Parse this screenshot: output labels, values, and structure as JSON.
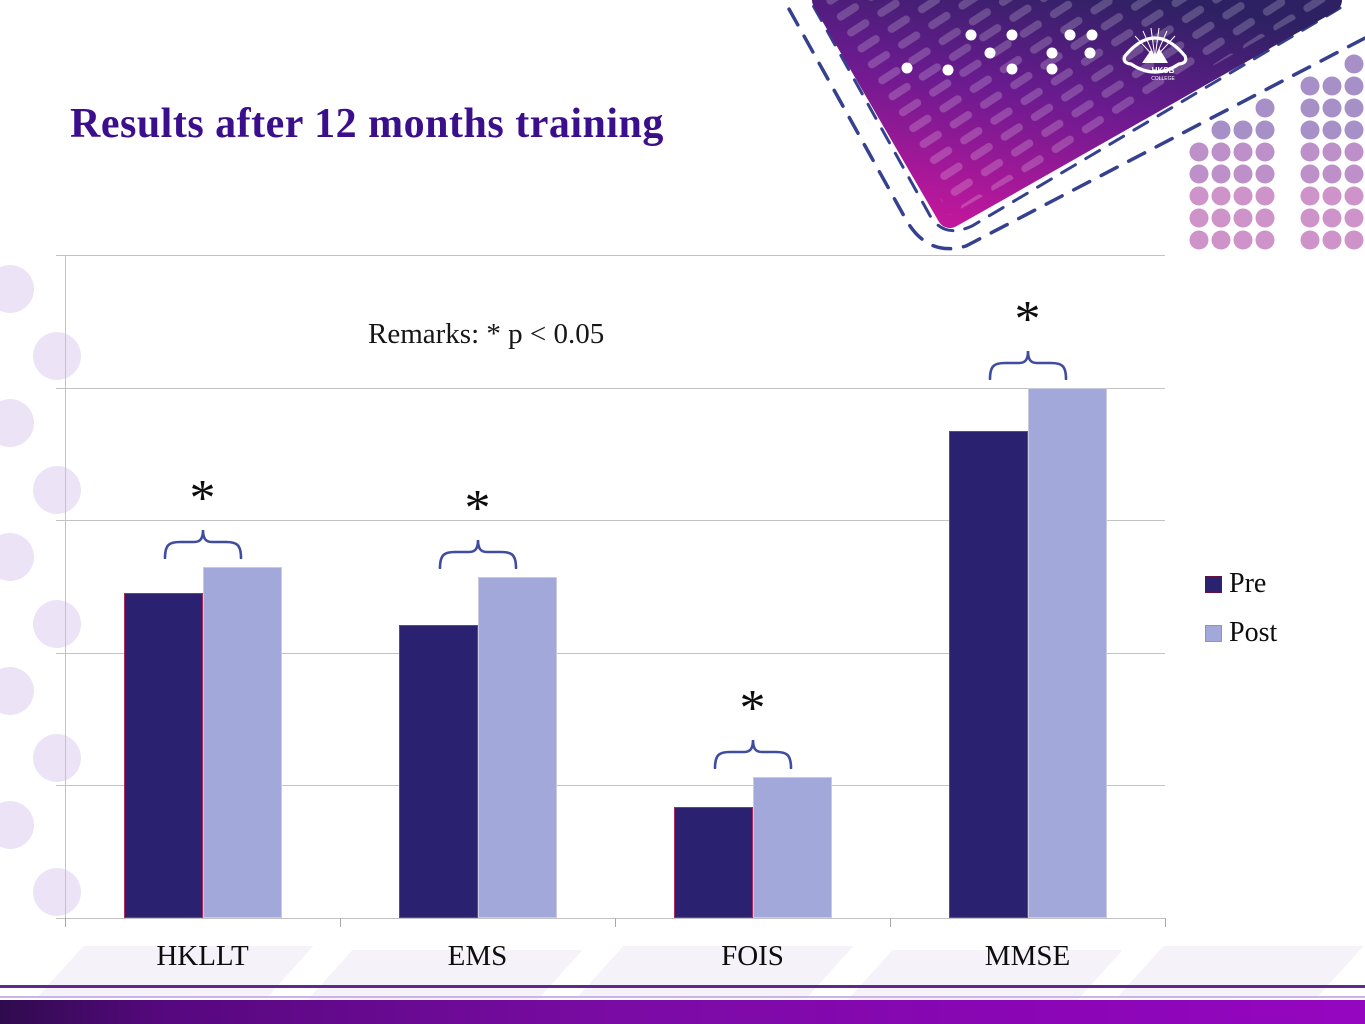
{
  "slide": {
    "title": "Results after 12 months training",
    "logo": {
      "org": "HKSB",
      "sub": "COLLEGE"
    }
  },
  "chart_data": {
    "type": "bar",
    "title": "",
    "categories": [
      "HKLLT",
      "EMS",
      "FOIS",
      "MMSE"
    ],
    "series": [
      {
        "name": "Pre",
        "values": [
          2.45,
          2.21,
          0.84,
          3.67
        ]
      },
      {
        "name": "Post",
        "values": [
          2.65,
          2.57,
          1.06,
          4.0
        ]
      }
    ],
    "ylim": [
      0,
      5
    ],
    "gridline_interval": 1,
    "grid": true,
    "y_tick_labels_visible": false,
    "legend_position": "right",
    "legend": [
      "Pre",
      "Post"
    ],
    "remark": "Remarks: * p < 0.05",
    "significance": [
      {
        "category": "HKLLT",
        "label": "*"
      },
      {
        "category": "EMS",
        "label": "*"
      },
      {
        "category": "FOIS",
        "label": "*"
      },
      {
        "category": "MMSE",
        "label": "*"
      }
    ],
    "significance_note": "* p < 0.05"
  },
  "colors": {
    "title": "#3B0F8B",
    "pre_fill": "#2B2171",
    "pre_border": "#AE2A5C",
    "post_fill": "#A3A8DB",
    "post_border": "#C9CADF",
    "bracket": "#3F4C9F",
    "gridline": "#C3C3C3",
    "text": "#111111",
    "bottom_bar_gradient": [
      "#2F0B4E",
      "#7A0BA4",
      "#9506C0"
    ]
  }
}
